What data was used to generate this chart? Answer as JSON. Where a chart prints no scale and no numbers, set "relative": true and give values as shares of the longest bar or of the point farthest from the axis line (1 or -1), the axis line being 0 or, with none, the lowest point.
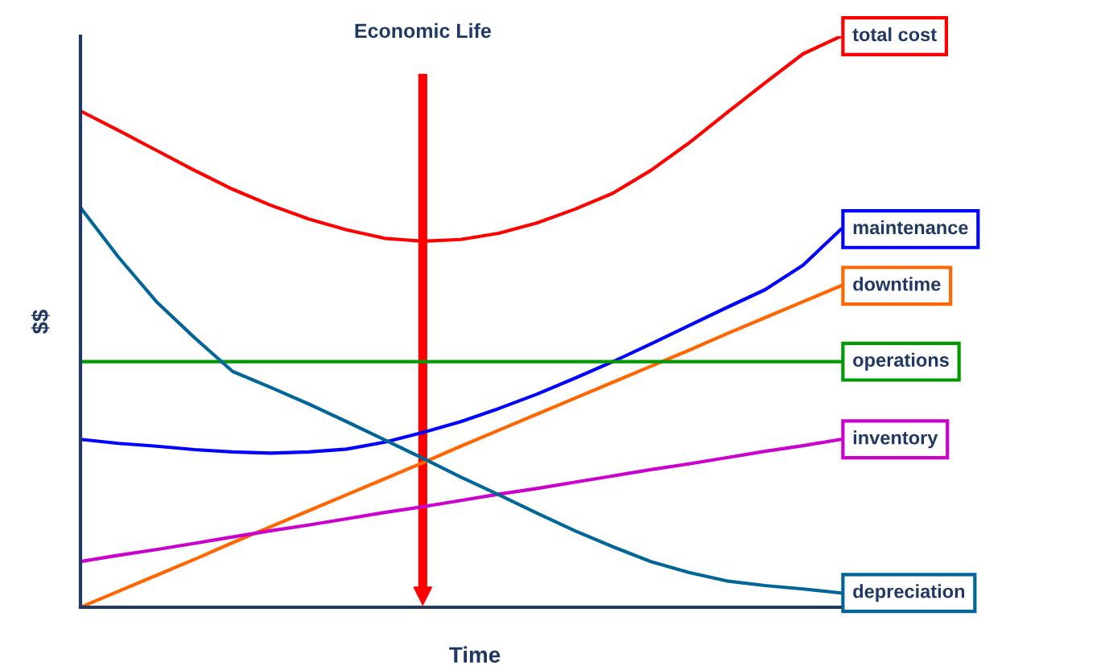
{
  "chart_data": {
    "type": "line",
    "relative": true,
    "title": "Economic Life",
    "xlabel": "Time",
    "ylabel": "$$",
    "categories": [
      null,
      null,
      null,
      null,
      null,
      null,
      null,
      null,
      null,
      null,
      null,
      null,
      null,
      null,
      null,
      null,
      null,
      null,
      null,
      null,
      null
    ],
    "series": [
      {
        "name": "total cost",
        "color": "#ff0000",
        "values": [
          0.869,
          0.835,
          0.8,
          0.765,
          0.732,
          0.704,
          0.68,
          0.661,
          0.646,
          0.641,
          0.644,
          0.655,
          0.673,
          0.697,
          0.725,
          0.765,
          0.813,
          0.866,
          0.918,
          0.969,
          1.0
        ]
      },
      {
        "name": "maintenance",
        "color": "#0000ff",
        "values": [
          0.294,
          0.287,
          0.282,
          0.276,
          0.272,
          0.27,
          0.272,
          0.277,
          0.289,
          0.306,
          0.325,
          0.348,
          0.373,
          0.401,
          0.43,
          0.461,
          0.493,
          0.525,
          0.556,
          0.599,
          0.662
        ]
      },
      {
        "name": "downtime",
        "color": "#ff6600",
        "values": [
          0,
          0.028,
          0.056,
          0.084,
          0.113,
          0.141,
          0.169,
          0.197,
          0.225,
          0.253,
          0.282,
          0.31,
          0.338,
          0.366,
          0.394,
          0.422,
          0.45,
          0.479,
          0.507,
          0.535,
          0.563
        ]
      },
      {
        "name": "operations",
        "color": "#009900",
        "values": [
          0.43,
          0.43,
          0.43,
          0.43,
          0.43,
          0.43,
          0.43,
          0.43,
          0.43,
          0.43,
          0.43,
          0.43,
          0.43,
          0.43,
          0.43,
          0.43,
          0.43,
          0.43,
          0.43,
          0.43,
          0.43
        ]
      },
      {
        "name": "inventory",
        "color": "#cc00cc",
        "values": [
          0.08,
          0.091,
          0.101,
          0.112,
          0.123,
          0.134,
          0.144,
          0.155,
          0.166,
          0.176,
          0.187,
          0.198,
          0.208,
          0.219,
          0.23,
          0.241,
          0.251,
          0.262,
          0.273,
          0.283,
          0.294
        ]
      },
      {
        "name": "depreciation",
        "color": "#006699",
        "values": [
          0.7,
          0.613,
          0.535,
          0.472,
          0.413,
          0.385,
          0.356,
          0.325,
          0.293,
          0.261,
          0.228,
          0.197,
          0.165,
          0.134,
          0.106,
          0.08,
          0.061,
          0.046,
          0.038,
          0.032,
          0.025
        ]
      }
    ],
    "legend": false,
    "marker": "none",
    "line_style": "solid"
  }
}
